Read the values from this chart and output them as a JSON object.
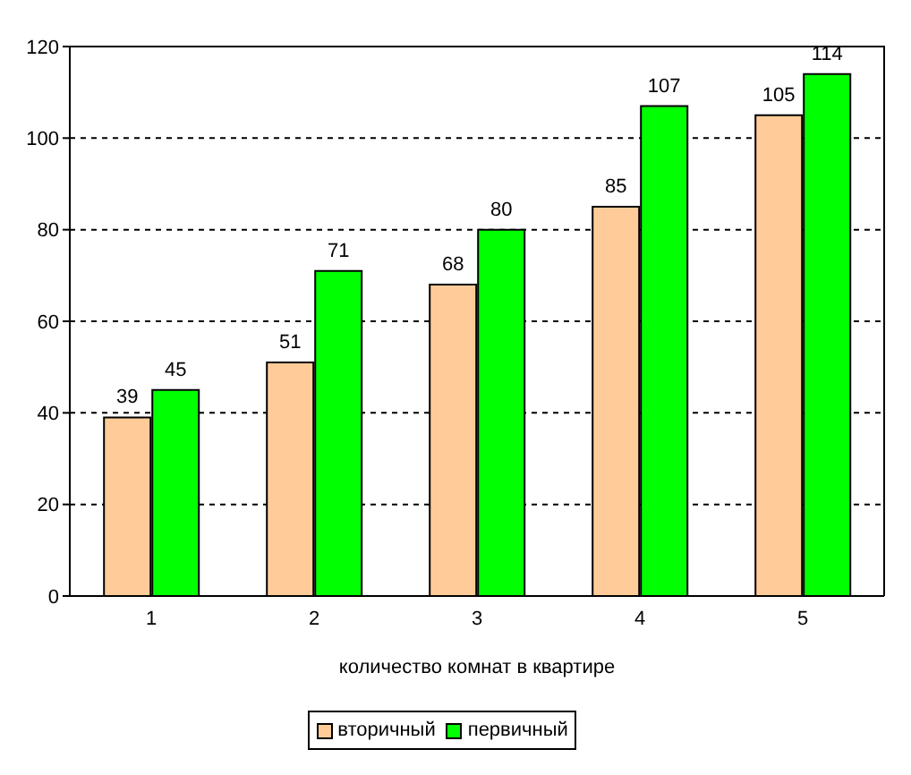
{
  "chart_data": {
    "type": "bar",
    "xlabel": "количество комнат в квартире",
    "categories": [
      "1",
      "2",
      "3",
      "4",
      "5"
    ],
    "series": [
      {
        "name": "вторичный",
        "color": "#ffcc99",
        "values": [
          39,
          51,
          68,
          85,
          105
        ]
      },
      {
        "name": "первичный",
        "color": "#00ff00",
        "values": [
          45,
          71,
          80,
          107,
          114
        ]
      }
    ],
    "ylim": [
      0,
      120
    ],
    "yticks": [
      0,
      20,
      40,
      60,
      80,
      100,
      120
    ],
    "grid": "y",
    "legend": "bottom",
    "data_labels": true
  }
}
